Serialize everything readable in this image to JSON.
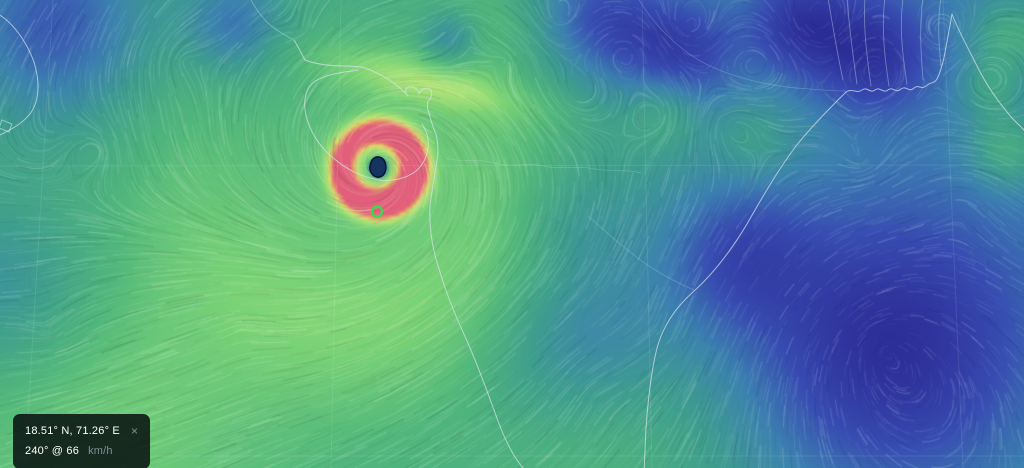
{
  "location_panel": {
    "coordinates": "18.51° N, 71.26° E",
    "close_label": "×",
    "wind_reading": "240° @ 66",
    "wind_unit": "km/h"
  },
  "map": {
    "marker_color": "#2fe04a",
    "coastline_color": "#d9e4ec",
    "cyclone_eye_color": "#17335f",
    "speed_scale_colors": {
      "calm": "#2c2c96",
      "moderate": "#3e9e8e",
      "fresh": "#78d276",
      "strong": "#e8d868",
      "violent": "#e25e7a"
    }
  }
}
